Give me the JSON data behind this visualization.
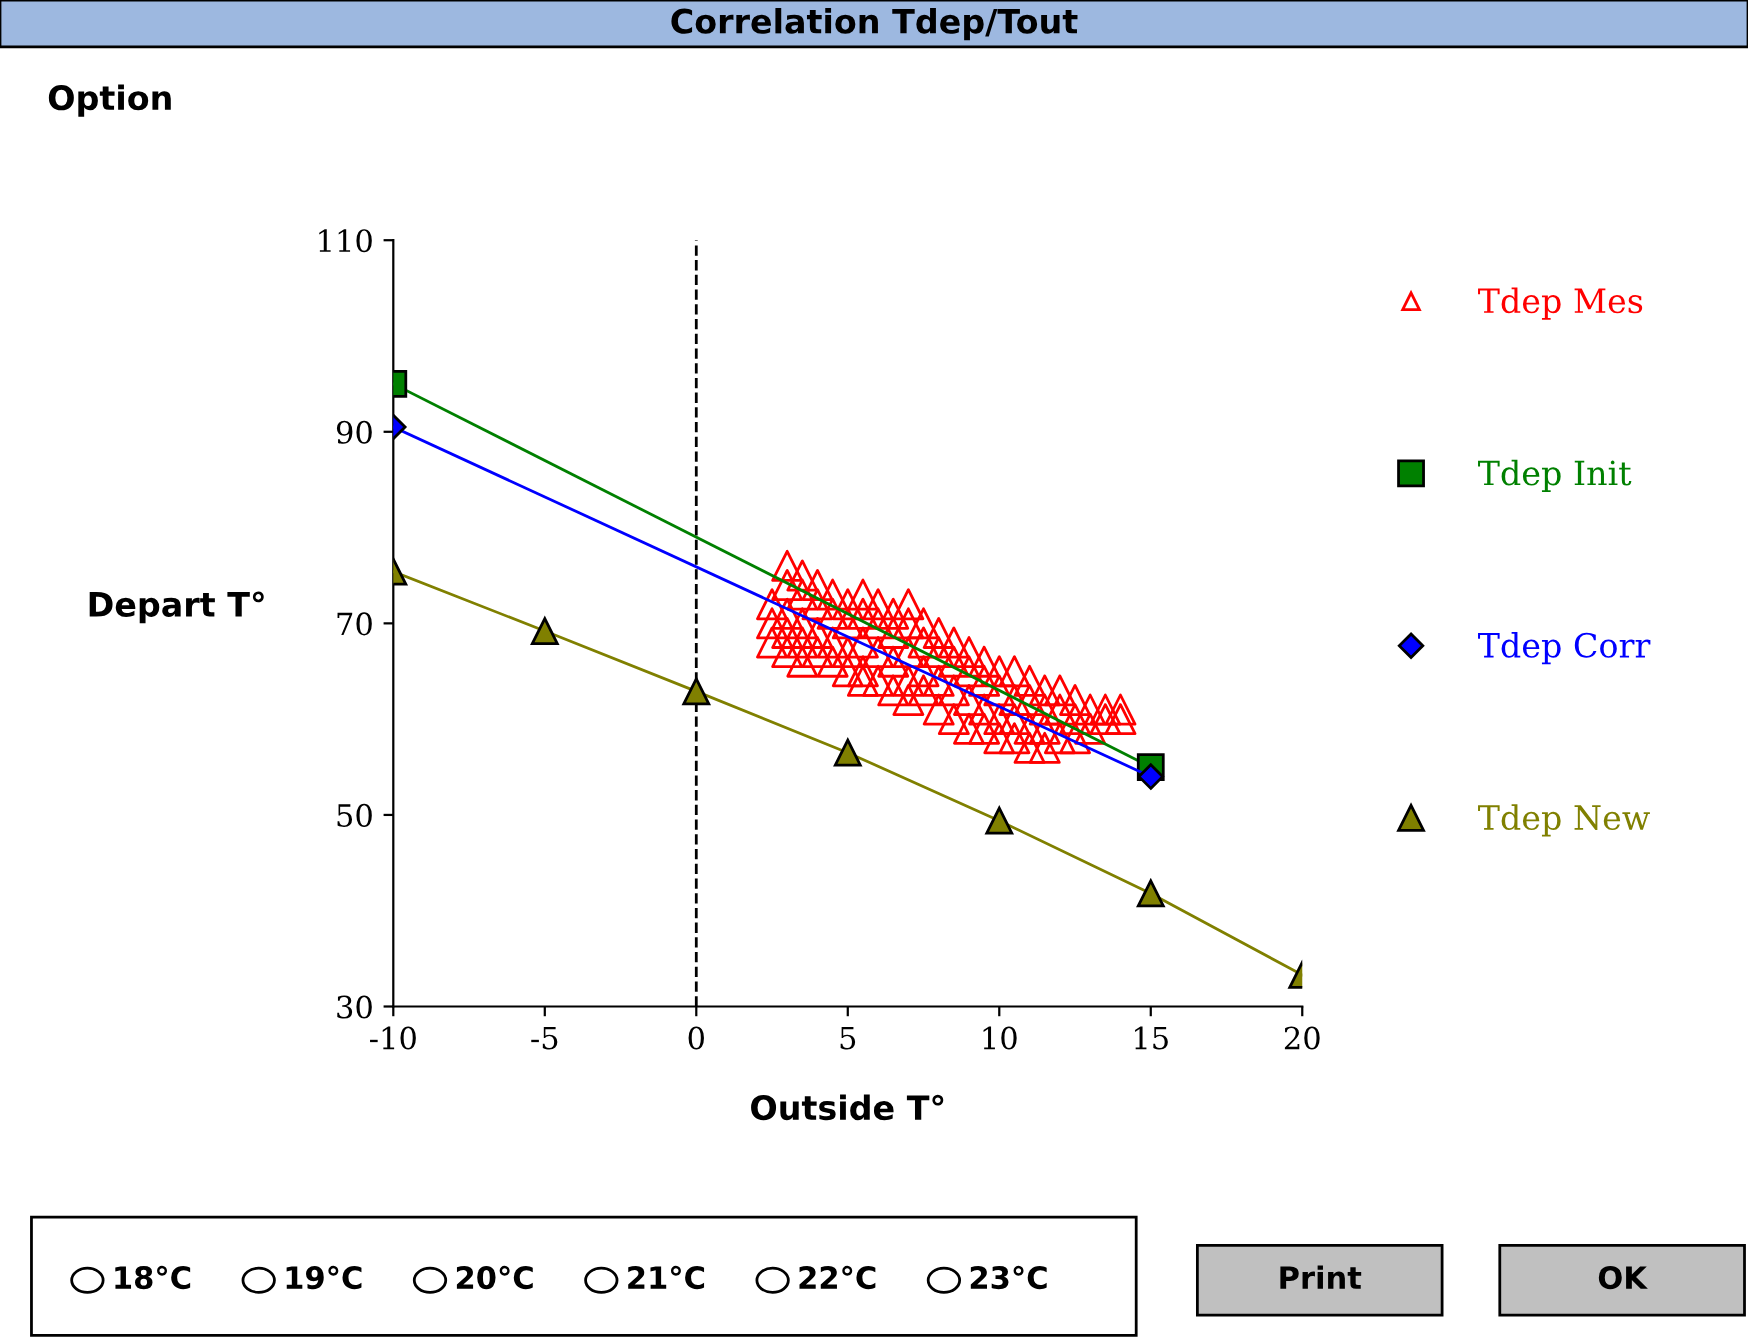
{
  "chart_data": {
    "type": "line",
    "title": "Correlation Tdep/Tout",
    "xlabel": "Outside T°",
    "ylabel": "Depart T°",
    "xlim": [
      -10,
      20
    ],
    "xticks": [
      -10,
      -5,
      0,
      5,
      10,
      15,
      20
    ],
    "ylim": [
      30,
      110
    ],
    "yticks": [
      30,
      50,
      70,
      90,
      110
    ],
    "grid": false,
    "legend": "right",
    "ref_lines": [
      {
        "axis": "x",
        "value": 0,
        "line_style": "dashed",
        "color": "#000000"
      }
    ],
    "annotations": [
      "Option",
      "18°C",
      "19°C",
      "20°C",
      "21°C",
      "22°C",
      "23°C",
      "Print",
      "OK"
    ],
    "series": [
      {
        "name": "Tdep Mes",
        "type": "scatter",
        "marker": "triangle",
        "color": "#ff0000",
        "x": [
          2.5,
          2.5,
          2.5,
          3,
          3,
          3,
          3,
          3,
          3.5,
          3.5,
          3.5,
          3.5,
          3.5,
          4,
          4,
          4,
          4,
          4.5,
          4.5,
          4.5,
          4.5,
          5,
          5,
          5,
          5,
          5.5,
          5.5,
          5.5,
          5.5,
          5.5,
          6,
          6,
          6,
          6,
          6.5,
          6.5,
          6.5,
          6.5,
          7,
          7,
          7,
          7,
          7,
          7.5,
          7.5,
          7.5,
          7.5,
          8,
          8,
          8,
          8,
          8.5,
          8.5,
          8.5,
          8.5,
          9,
          9,
          9,
          9,
          9.5,
          9.5,
          9.5,
          9.5,
          10,
          10,
          10,
          10,
          10.5,
          10.5,
          10.5,
          10.5,
          11,
          11,
          11,
          11,
          11.5,
          11.5,
          11.5,
          11.5,
          12,
          12,
          12,
          12.5,
          12.5,
          12.5,
          13,
          13,
          13.5,
          13.5,
          14,
          14
        ],
        "values": [
          72,
          70,
          68,
          76,
          74,
          71,
          69,
          67,
          75,
          73,
          70,
          68,
          66,
          74,
          72,
          69,
          67,
          73,
          71,
          68,
          66,
          72,
          70,
          67,
          65,
          73,
          71,
          68,
          65,
          64,
          72,
          70,
          67,
          64,
          71,
          69,
          66,
          63,
          72,
          70,
          67,
          64,
          62,
          70,
          68,
          65,
          63,
          69,
          67,
          64,
          61,
          68,
          66,
          63,
          60,
          67,
          65,
          62,
          59,
          66,
          64,
          61,
          59,
          65,
          63,
          60,
          58,
          65,
          62,
          60,
          58,
          64,
          62,
          59,
          57,
          63,
          61,
          59,
          57,
          63,
          61,
          58,
          62,
          60,
          58,
          61,
          59,
          61,
          60,
          60,
          61
        ]
      },
      {
        "name": "Tdep Init",
        "marker": "square",
        "color": "#008000",
        "x": [
          -10,
          15
        ],
        "values": [
          95,
          55
        ]
      },
      {
        "name": "Tdep Corr",
        "marker": "diamond",
        "color": "#0000ff",
        "x": [
          -10,
          15
        ],
        "values": [
          90.5,
          54
        ]
      },
      {
        "name": "Tdep New",
        "marker": "triangle",
        "color": "#808000",
        "x": [
          -10,
          -5,
          0,
          5,
          10,
          15,
          20
        ],
        "values": [
          75.4,
          69.2,
          62.9,
          56.5,
          49.4,
          41.8,
          33.3
        ]
      }
    ]
  }
}
